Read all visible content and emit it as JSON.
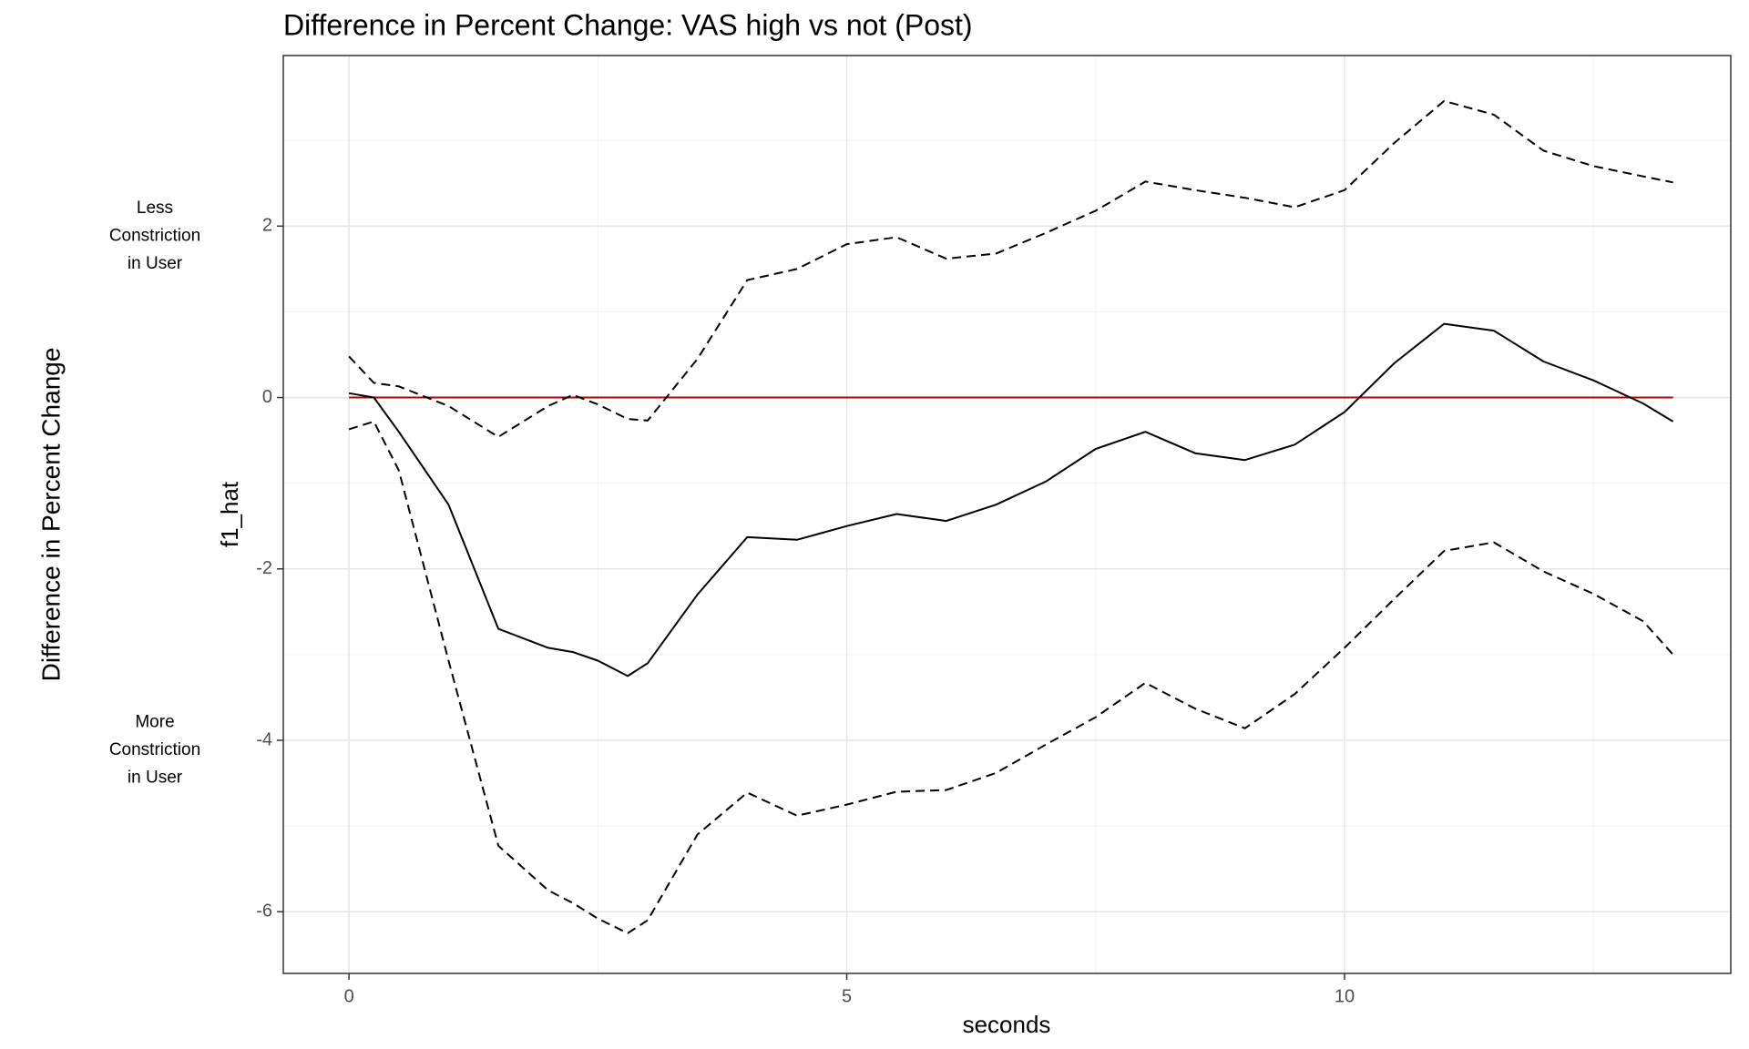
{
  "chart_data": {
    "type": "line",
    "title": "Difference in Percent Change: VAS high vs not (Post)",
    "x_label": "seconds",
    "y_label": "f1_hat",
    "outer_y_label": "Difference in Percent Change",
    "annotations": [
      {
        "lines": [
          "Less",
          "Constriction",
          "in User"
        ],
        "y": 2
      },
      {
        "lines": [
          "More",
          "Constriction",
          "in User"
        ],
        "y": -4
      }
    ],
    "x": [
      0,
      0.25,
      0.5,
      1,
      1.5,
      2,
      2.25,
      2.5,
      2.8,
      3,
      3.5,
      4,
      4.5,
      5,
      5.5,
      6,
      6.5,
      7,
      7.5,
      8,
      8.5,
      9,
      9.5,
      10,
      10.5,
      11,
      11.5,
      12,
      12.5,
      13,
      13.3
    ],
    "series": [
      {
        "color": "#000000",
        "dashed": false,
        "values": [
          0.05,
          0,
          -0.4,
          -1.25,
          -2.7,
          -2.92,
          -2.97,
          -3.07,
          -3.25,
          -3.1,
          -2.3,
          -1.63,
          -1.66,
          -1.5,
          -1.36,
          -1.44,
          -1.25,
          -0.98,
          -0.6,
          -0.4,
          -0.65,
          -0.73,
          -0.55,
          -0.17,
          0.4,
          0.86,
          0.78,
          0.42,
          0.2,
          -0.07,
          -0.28
        ]
      },
      {
        "color": "#000000",
        "dashed": true,
        "values": [
          0.48,
          0.17,
          0.13,
          -0.1,
          -0.46,
          -0.1,
          0.03,
          -0.08,
          -0.25,
          -0.27,
          0.45,
          1.37,
          1.5,
          1.79,
          1.87,
          1.62,
          1.68,
          1.92,
          2.18,
          2.52,
          2.42,
          2.33,
          2.22,
          2.42,
          2.97,
          3.46,
          3.3,
          2.88,
          2.7,
          2.58,
          2.51
        ]
      },
      {
        "color": "#000000",
        "dashed": true,
        "values": [
          -0.37,
          -0.28,
          -0.85,
          -3.07,
          -5.23,
          -5.75,
          -5.9,
          -6.08,
          -6.25,
          -6.1,
          -5.1,
          -4.61,
          -4.88,
          -4.75,
          -4.6,
          -4.58,
          -4.38,
          -4.05,
          -3.73,
          -3.33,
          -3.63,
          -3.86,
          -3.46,
          -2.92,
          -2.35,
          -1.79,
          -1.69,
          -2.03,
          -2.29,
          -2.61,
          -3.0
        ]
      }
    ],
    "hline": {
      "value": 0,
      "color": "#c00000"
    },
    "xlim": [
      -0.66,
      13.88
    ],
    "ylim": [
      -6.72,
      3.99
    ],
    "xticks": [
      0,
      5,
      10
    ],
    "yticks": [
      -6,
      -4,
      -2,
      0,
      2
    ],
    "minor_xticks": [
      2.5,
      7.5,
      12.5
    ],
    "minor_yticks": [
      -5,
      -3,
      -1,
      1,
      3
    ],
    "grid": true
  }
}
